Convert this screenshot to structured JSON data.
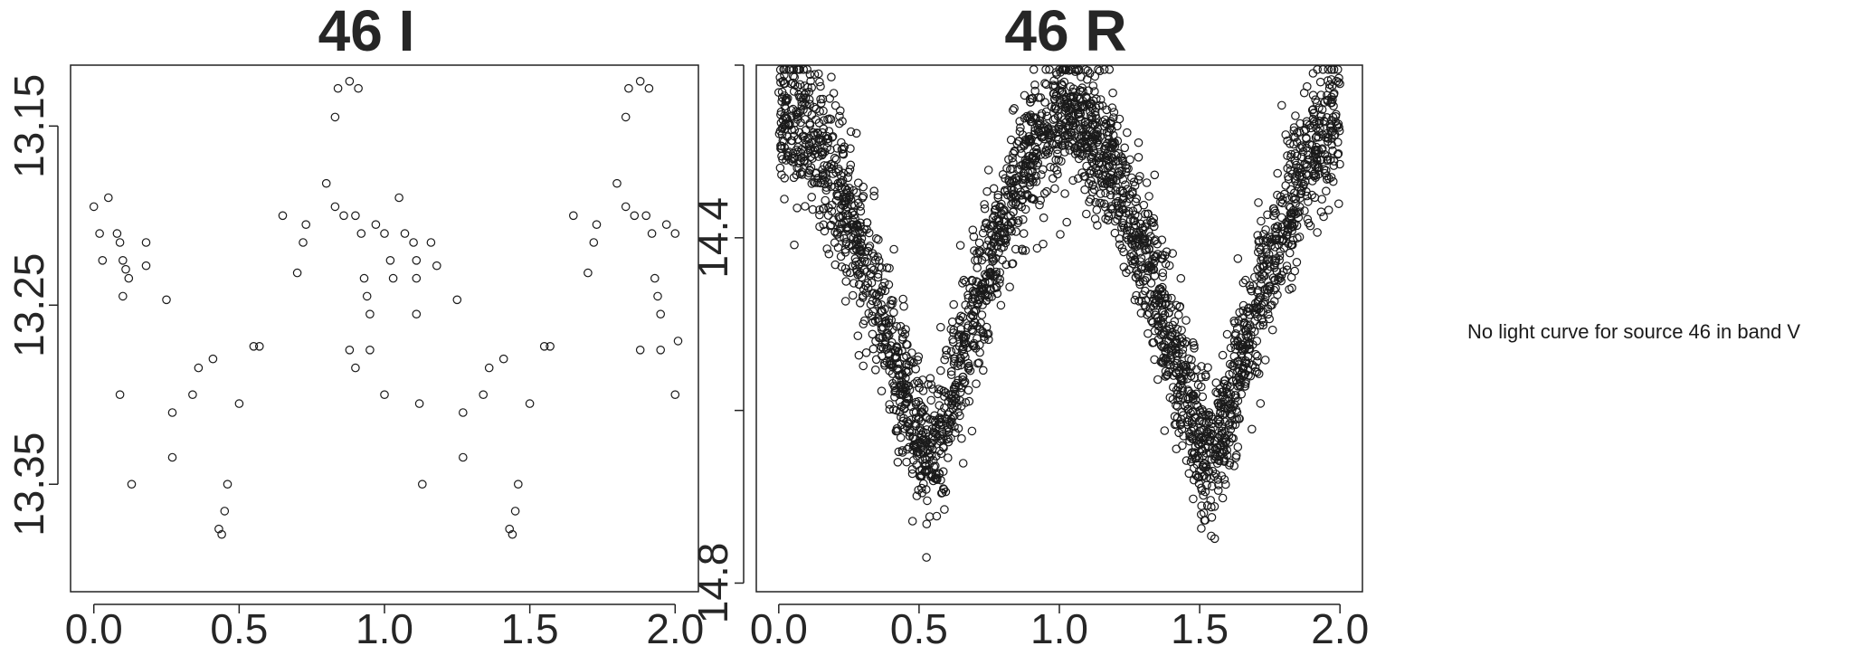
{
  "chart_data": [
    {
      "type": "scatter",
      "title": "46 I",
      "xlabel": "",
      "ylabel": "",
      "xlim": [
        -0.08,
        2.08
      ],
      "ylim": [
        13.41,
        13.116
      ],
      "y_inverted": true,
      "x_ticks": [
        "0.0",
        "0.5",
        "1.0",
        "1.5",
        "2.0"
      ],
      "x_tick_values": [
        0.0,
        0.5,
        1.0,
        1.5,
        2.0
      ],
      "y_ticks": [
        "13.15",
        "13.25",
        "13.35"
      ],
      "y_tick_values": [
        13.15,
        13.25,
        13.35
      ],
      "grid": false,
      "marker": "open-circle",
      "points": [
        [
          0.0,
          13.195
        ],
        [
          0.02,
          13.21
        ],
        [
          0.03,
          13.225
        ],
        [
          0.05,
          13.19
        ],
        [
          0.08,
          13.21
        ],
        [
          0.09,
          13.215
        ],
        [
          0.1,
          13.225
        ],
        [
          0.11,
          13.23
        ],
        [
          0.1,
          13.245
        ],
        [
          0.09,
          13.3
        ],
        [
          0.12,
          13.235
        ],
        [
          0.13,
          13.35
        ],
        [
          0.18,
          13.215
        ],
        [
          0.18,
          13.228
        ],
        [
          0.25,
          13.247
        ],
        [
          0.27,
          13.31
        ],
        [
          0.27,
          13.335
        ],
        [
          0.34,
          13.3
        ],
        [
          0.36,
          13.285
        ],
        [
          0.41,
          13.28
        ],
        [
          0.43,
          13.375
        ],
        [
          0.44,
          13.378
        ],
        [
          0.45,
          13.365
        ],
        [
          0.46,
          13.35
        ],
        [
          0.5,
          13.305
        ],
        [
          0.55,
          13.273
        ],
        [
          0.57,
          13.273
        ],
        [
          0.65,
          13.2
        ],
        [
          0.7,
          13.232
        ],
        [
          0.72,
          13.215
        ],
        [
          0.73,
          13.205
        ],
        [
          0.8,
          13.182
        ],
        [
          0.83,
          13.195
        ],
        [
          0.83,
          13.145
        ],
        [
          0.84,
          13.129
        ],
        [
          0.86,
          13.2
        ],
        [
          0.88,
          13.125
        ],
        [
          0.9,
          13.2
        ],
        [
          0.91,
          13.129
        ],
        [
          0.92,
          13.21
        ],
        [
          0.93,
          13.235
        ],
        [
          0.94,
          13.245
        ],
        [
          0.95,
          13.255
        ],
        [
          0.95,
          13.275
        ],
        [
          0.97,
          13.205
        ],
        [
          1.0,
          13.21
        ],
        [
          1.02,
          13.225
        ],
        [
          1.03,
          13.235
        ],
        [
          1.05,
          13.19
        ],
        [
          1.07,
          13.21
        ],
        [
          1.1,
          13.215
        ],
        [
          1.11,
          13.225
        ],
        [
          1.11,
          13.235
        ],
        [
          1.11,
          13.255
        ],
        [
          1.12,
          13.305
        ],
        [
          1.13,
          13.35
        ],
        [
          1.16,
          13.215
        ],
        [
          1.18,
          13.228
        ],
        [
          1.25,
          13.247
        ],
        [
          1.27,
          13.31
        ],
        [
          1.27,
          13.335
        ],
        [
          1.34,
          13.3
        ],
        [
          1.36,
          13.285
        ],
        [
          1.41,
          13.28
        ],
        [
          1.43,
          13.375
        ],
        [
          1.44,
          13.378
        ],
        [
          1.45,
          13.365
        ],
        [
          1.46,
          13.35
        ],
        [
          1.5,
          13.305
        ],
        [
          1.55,
          13.273
        ],
        [
          1.57,
          13.273
        ],
        [
          1.65,
          13.2
        ],
        [
          1.7,
          13.232
        ],
        [
          1.72,
          13.215
        ],
        [
          1.73,
          13.205
        ],
        [
          1.8,
          13.182
        ],
        [
          1.83,
          13.195
        ],
        [
          1.83,
          13.145
        ],
        [
          1.84,
          13.129
        ],
        [
          1.86,
          13.2
        ],
        [
          1.88,
          13.125
        ],
        [
          1.9,
          13.2
        ],
        [
          1.91,
          13.129
        ],
        [
          1.92,
          13.21
        ],
        [
          1.93,
          13.235
        ],
        [
          1.94,
          13.245
        ],
        [
          1.95,
          13.255
        ],
        [
          1.95,
          13.275
        ],
        [
          1.97,
          13.205
        ],
        [
          2.0,
          13.21
        ],
        [
          2.0,
          13.3
        ],
        [
          2.01,
          13.27
        ],
        [
          1.88,
          13.275
        ],
        [
          0.88,
          13.275
        ],
        [
          1.0,
          13.3
        ],
        [
          0.9,
          13.285
        ]
      ]
    },
    {
      "type": "scatter",
      "title": "46 R",
      "xlabel": "",
      "ylabel": "",
      "xlim": [
        -0.08,
        2.08
      ],
      "ylim": [
        14.81,
        14.2
      ],
      "y_inverted": true,
      "x_ticks": [
        "0.0",
        "0.5",
        "1.0",
        "1.5",
        "2.0"
      ],
      "x_tick_values": [
        0.0,
        0.5,
        1.0,
        1.5,
        2.0
      ],
      "y_ticks": [
        "14.4",
        "14.8"
      ],
      "y_tick_values": [
        14.4,
        14.8
      ],
      "minor_y_tick_values": [
        14.2,
        14.6
      ],
      "grid": false,
      "marker": "open-circle",
      "model": "minima near phases 0.55 and 1.55 (~14.65), maxima near phases 0.05 and 1.05 (~14.25); several thousand points with scatter ~0.04 mag",
      "curve": {
        "phase": [
          0.0,
          0.1,
          0.2,
          0.3,
          0.4,
          0.5,
          0.55,
          0.6,
          0.7,
          0.8,
          0.9,
          1.0,
          1.05,
          1.1,
          1.2,
          1.3,
          1.4,
          1.5,
          1.55,
          1.6,
          1.7,
          1.8,
          1.9,
          2.0
        ],
        "mag": [
          14.26,
          14.275,
          14.33,
          14.42,
          14.53,
          14.63,
          14.65,
          14.6,
          14.48,
          14.38,
          14.3,
          14.26,
          14.25,
          14.275,
          14.33,
          14.42,
          14.53,
          14.63,
          14.65,
          14.6,
          14.48,
          14.38,
          14.3,
          14.26
        ]
      },
      "point_count": 3000
    }
  ],
  "note": "No light curve for source 46 in band V"
}
